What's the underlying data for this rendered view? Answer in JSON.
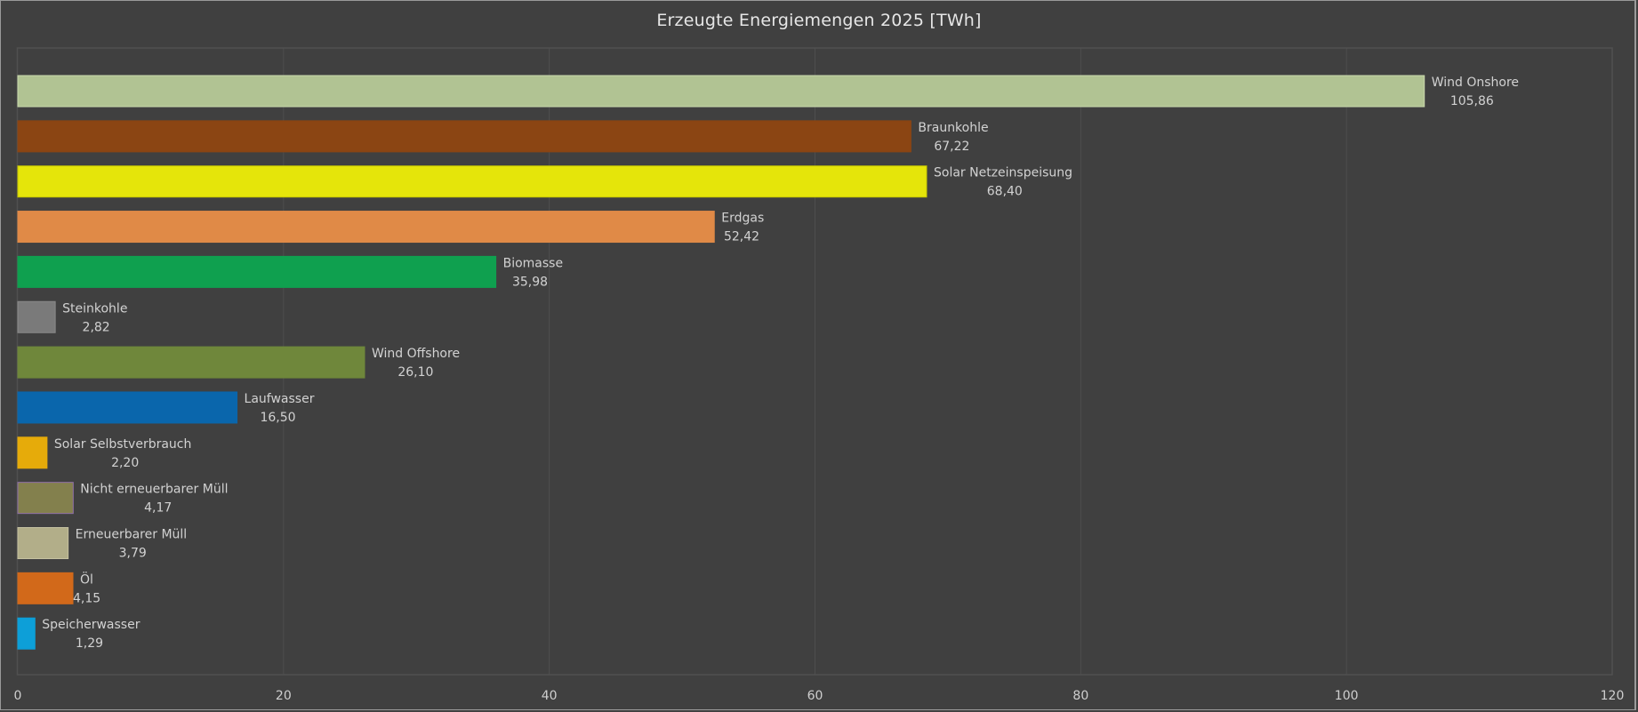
{
  "chart_data": {
    "type": "bar",
    "orientation": "horizontal",
    "title": "Erzeugte Energiemengen 2025 [TWh]",
    "xlabel": "",
    "ylabel": "",
    "xlim": [
      0,
      120
    ],
    "xticks": [
      0,
      20,
      40,
      60,
      80,
      100,
      120
    ],
    "grid": true,
    "legend": "none",
    "categories": [
      "Wind Onshore",
      "Braunkohle",
      "Solar Netzeinspeisung",
      "Erdgas",
      "Biomasse",
      "Steinkohle",
      "Wind Offshore",
      "Laufwasser",
      "Solar Selbstverbrauch",
      "Nicht erneuerbarer Müll",
      "Erneuerbarer Müll",
      "Öl",
      "Speicherwasser"
    ],
    "values": [
      105.86,
      67.22,
      68.4,
      52.42,
      35.98,
      2.82,
      26.1,
      16.5,
      2.2,
      4.17,
      3.79,
      4.15,
      1.29
    ],
    "value_labels": [
      "105,86",
      "67,22",
      "68,40",
      "52,42",
      "35,98",
      "2,82",
      "26,10",
      "16,50",
      "2,20",
      "4,17",
      "3,79",
      "4,15",
      "1,29"
    ],
    "colors": [
      "#b1c393",
      "#8b4513",
      "#e5e50a",
      "#e08a47",
      "#0fa04f",
      "#7a7a7a",
      "#6f873b",
      "#0a66ac",
      "#e6ab0a",
      "#83804d",
      "#b2ae89",
      "#d2691a",
      "#0d9fd8"
    ],
    "border_colors": [
      "#c9d8ad",
      "#8b4513",
      "#c8c800",
      "#e08a47",
      "#0fa04f",
      "#8a8a8a",
      "#6f873b",
      "#0a66ac",
      "#e6ab0a",
      "#8f6fa8",
      "#c4c0a0",
      "#d2691a",
      "#0d9fd8"
    ]
  }
}
